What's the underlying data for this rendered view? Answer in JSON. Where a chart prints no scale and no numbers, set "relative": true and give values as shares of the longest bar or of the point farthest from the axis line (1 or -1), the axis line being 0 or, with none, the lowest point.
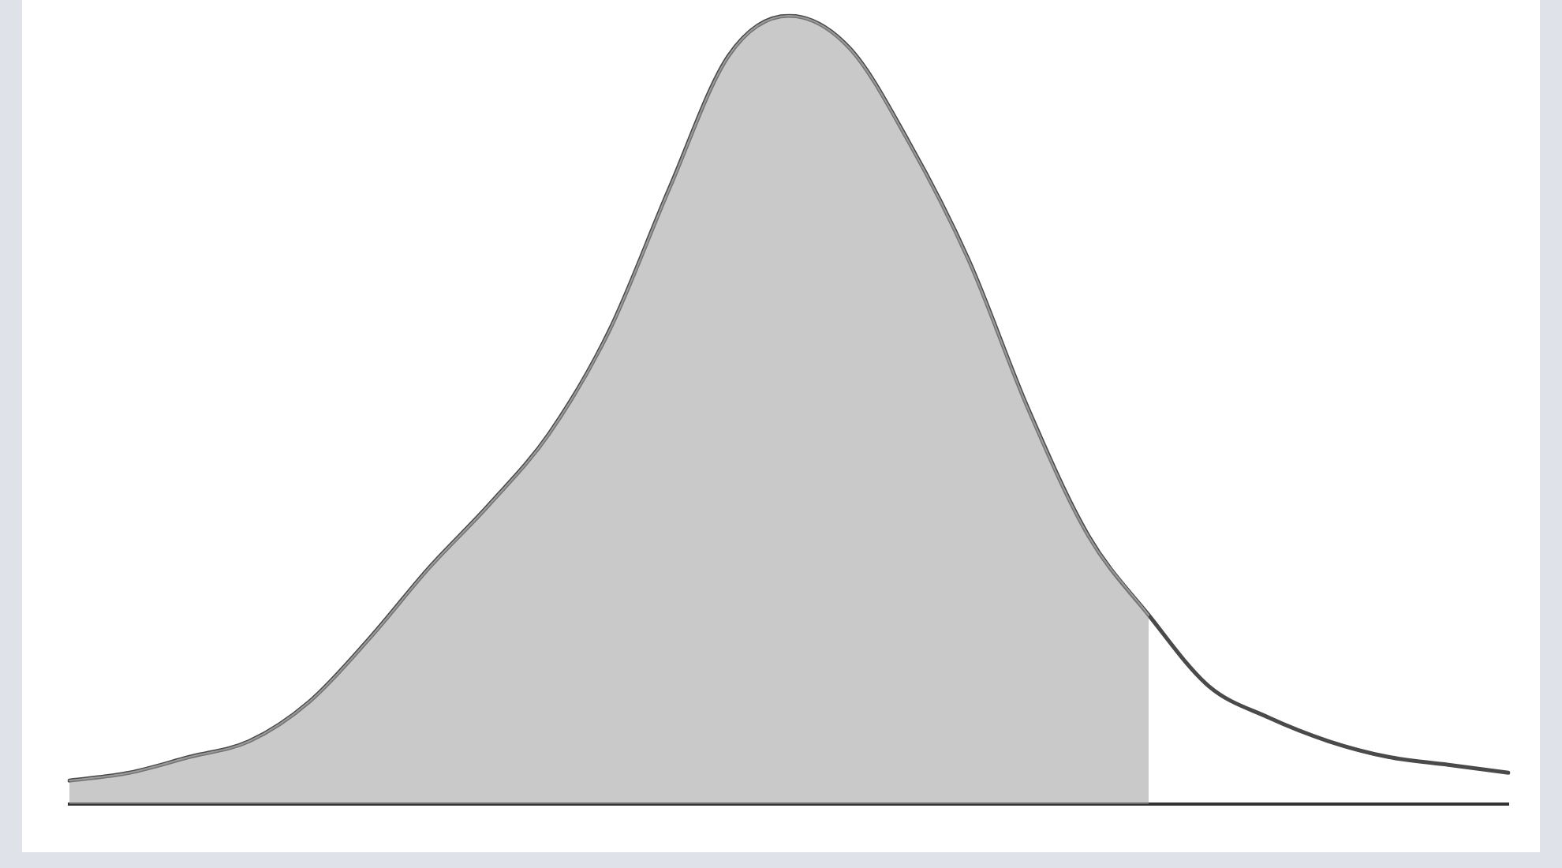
{
  "chart_data": {
    "type": "area",
    "relative": true,
    "categories": [
      null,
      null,
      null,
      null,
      null,
      null,
      null,
      null,
      null,
      null,
      null,
      null,
      null,
      null,
      null,
      null,
      null,
      null,
      null,
      null,
      null,
      null,
      null,
      null,
      null
    ],
    "series": [
      {
        "color": "#9a9a9a",
        "values": [
          0.03,
          0.04,
          0.06,
          0.08,
          0.13,
          0.21,
          0.3,
          0.38,
          0.47,
          0.6,
          0.78,
          0.95,
          1.0,
          0.96,
          0.84,
          0.69,
          0.5,
          0.34,
          0.24,
          null,
          null,
          null,
          null,
          null,
          null
        ]
      },
      {
        "type": "line",
        "color": "#4a4a4a",
        "values": [
          0.03,
          0.04,
          0.06,
          0.08,
          0.13,
          0.21,
          0.3,
          0.38,
          0.47,
          0.6,
          0.78,
          0.95,
          1.0,
          0.96,
          0.84,
          0.69,
          0.5,
          0.34,
          0.24,
          0.15,
          0.11,
          0.08,
          0.06,
          0.05,
          0.04
        ]
      }
    ],
    "grid": false,
    "legend": false,
    "marker": "none",
    "line_style": "solid"
  }
}
